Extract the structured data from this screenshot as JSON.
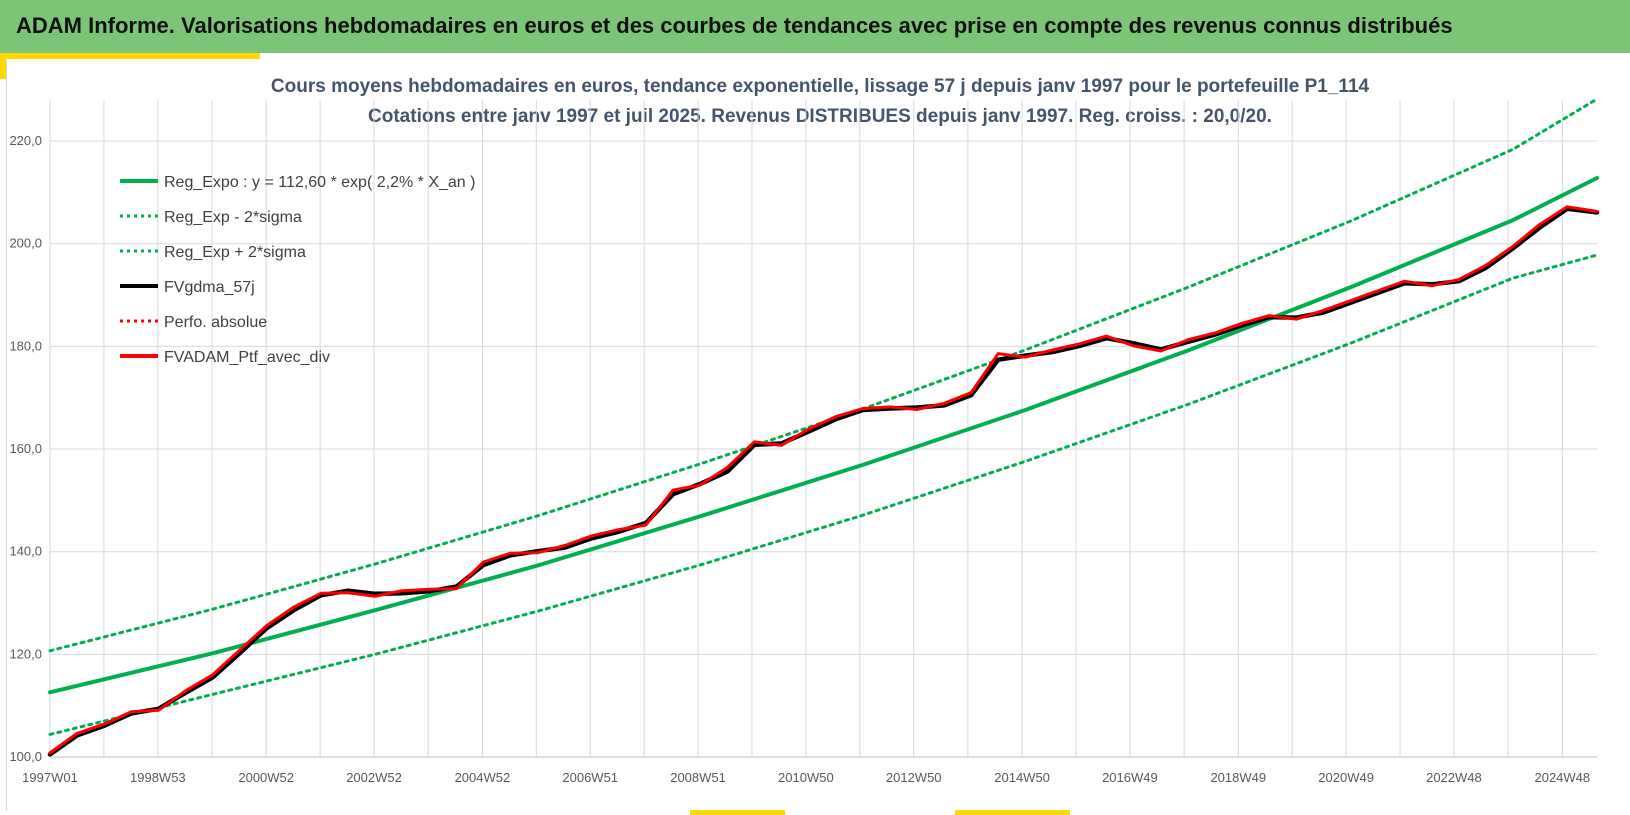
{
  "banner": {
    "title": "ADAM Informe. Valorisations hebdomadaires en euros et des courbes de tendances avec prise en compte des revenus connus distribués"
  },
  "colors": {
    "banner_bg": "#7cc576",
    "accent": "#ffd800",
    "trend_green": "#00b050",
    "fvgdma_black": "#000000",
    "portfolio_red": "#ff0000",
    "title_text": "#44546a"
  },
  "chart_data": {
    "type": "line",
    "title_line1": "Cours moyens hebdomadaires  en euros, tendance exponentielle, lissage 57 j depuis janv 1997 pour le portefeuille P1_114",
    "title_line2": "Cotations entre janv 1997 et juil 2025. Revenus DISTRIBUES depuis janv 1997. Reg. croiss. : 20,0/20.",
    "xlabel": "",
    "ylabel": "",
    "x_range": [
      1997.0,
      2025.55
    ],
    "ylim": [
      100,
      228
    ],
    "y_ticks": [
      100,
      120,
      140,
      160,
      180,
      200,
      220
    ],
    "y_tick_labels": [
      "100,0",
      "120,0",
      "140,0",
      "160,0",
      "180,0",
      "200,0",
      "220,0"
    ],
    "x_ticks": [
      {
        "x": 1997.0,
        "label": "1997W01"
      },
      {
        "x": 1998.99,
        "label": "1998W53"
      },
      {
        "x": 2000.99,
        "label": "2000W52"
      },
      {
        "x": 2002.98,
        "label": "2002W52"
      },
      {
        "x": 2004.98,
        "label": "2004W52"
      },
      {
        "x": 2006.97,
        "label": "2006W51"
      },
      {
        "x": 2008.96,
        "label": "2008W51"
      },
      {
        "x": 2010.95,
        "label": "2010W50"
      },
      {
        "x": 2012.94,
        "label": "2012W50"
      },
      {
        "x": 2014.94,
        "label": "2014W50"
      },
      {
        "x": 2016.93,
        "label": "2016W49"
      },
      {
        "x": 2018.93,
        "label": "2018W49"
      },
      {
        "x": 2020.92,
        "label": "2020W49"
      },
      {
        "x": 2022.91,
        "label": "2022W48"
      },
      {
        "x": 2024.91,
        "label": "2024W48"
      }
    ],
    "grid": {
      "horizontal": true,
      "vertical": true
    },
    "legend_position": "top-left",
    "legend": [
      {
        "label": "Reg_Expo : y = 112,60 * exp( 2,2% *  X_an )",
        "color": "#00b050",
        "style": "solid"
      },
      {
        "label": "Reg_Exp - 2*sigma",
        "color": "#00b050",
        "style": "dotted"
      },
      {
        "label": "Reg_Exp + 2*sigma",
        "color": "#00b050",
        "style": "dotted"
      },
      {
        "label": "FVgdma_57j",
        "color": "#000000",
        "style": "solid"
      },
      {
        "label": "Perfo. absolue",
        "color": "#ff0000",
        "style": "dotted"
      },
      {
        "label": "FVADAM_Ptf_avec_div",
        "color": "#ff0000",
        "style": "solid"
      }
    ],
    "series": [
      {
        "name": "Reg_Expo : y = 112,60 * exp( 2,2% *  X_an )",
        "x": [
          1997.0,
          2000.0,
          2003.0,
          2006.0,
          2009.0,
          2012.0,
          2015.0,
          2018.0,
          2021.0,
          2024.0,
          2025.55
        ],
        "values": [
          112.6,
          120.2,
          128.6,
          137.3,
          146.9,
          156.9,
          167.6,
          179.2,
          191.5,
          204.6,
          212.8
        ]
      },
      {
        "name": "Reg_Exp - 2*sigma",
        "x": [
          1997.0,
          2000.0,
          2003.0,
          2006.0,
          2009.0,
          2012.0,
          2015.0,
          2018.0,
          2021.0,
          2024.0,
          2025.55
        ],
        "values": [
          104.4,
          112.2,
          120.0,
          128.4,
          137.4,
          147.1,
          157.6,
          168.7,
          180.6,
          193.3,
          197.8
        ]
      },
      {
        "name": "Reg_Exp + 2*sigma",
        "x": [
          1997.0,
          2000.0,
          2003.0,
          2006.0,
          2009.0,
          2012.0,
          2015.0,
          2018.0,
          2021.0,
          2024.0,
          2025.55
        ],
        "values": [
          120.7,
          128.8,
          137.6,
          147.0,
          157.1,
          167.8,
          179.3,
          191.5,
          204.4,
          218.4,
          228.2
        ]
      },
      {
        "name": "FVgdma_57j",
        "x": [
          1997.0,
          1997.5,
          1998.0,
          1998.5,
          1999.0,
          1999.5,
          2000.0,
          2000.5,
          2001.0,
          2001.5,
          2002.0,
          2002.5,
          2003.0,
          2003.5,
          2004.0,
          2004.5,
          2005.0,
          2005.5,
          2006.0,
          2006.5,
          2007.0,
          2007.5,
          2008.0,
          2008.5,
          2009.0,
          2009.5,
          2010.0,
          2010.5,
          2011.0,
          2011.5,
          2012.0,
          2012.5,
          2013.0,
          2013.5,
          2014.0,
          2014.5,
          2015.0,
          2015.5,
          2016.0,
          2016.5,
          2017.0,
          2017.5,
          2018.0,
          2018.5,
          2019.0,
          2019.5,
          2020.0,
          2020.5,
          2021.0,
          2021.5,
          2022.0,
          2022.5,
          2023.0,
          2023.5,
          2024.0,
          2024.5,
          2025.0,
          2025.55
        ],
        "values": [
          100.5,
          104.2,
          106.1,
          108.5,
          109.4,
          112.5,
          115.5,
          120.2,
          125.1,
          128.6,
          131.5,
          132.4,
          131.8,
          131.9,
          132.3,
          133.2,
          137.4,
          139.3,
          140.1,
          140.8,
          142.6,
          143.9,
          145.6,
          151.2,
          153.2,
          155.6,
          160.8,
          161.1,
          163.4,
          165.8,
          167.6,
          167.9,
          168.1,
          168.5,
          170.5,
          177.4,
          178.2,
          178.9,
          180.1,
          181.6,
          180.6,
          179.4,
          180.9,
          182.3,
          184.1,
          185.7,
          185.6,
          186.6,
          188.5,
          190.4,
          192.3,
          192.1,
          192.7,
          195.3,
          199.1,
          203.2,
          206.8,
          206.1
        ]
      },
      {
        "name": "FVADAM_Ptf_avec_div",
        "x": [
          1997.0,
          1997.5,
          1998.0,
          1998.5,
          1999.0,
          1999.5,
          2000.0,
          2000.5,
          2001.0,
          2001.5,
          2002.0,
          2002.5,
          2003.0,
          2003.5,
          2004.0,
          2004.5,
          2005.0,
          2005.5,
          2006.0,
          2006.5,
          2007.0,
          2007.5,
          2008.0,
          2008.5,
          2009.0,
          2009.5,
          2010.0,
          2010.5,
          2011.0,
          2011.5,
          2012.0,
          2012.5,
          2013.0,
          2013.5,
          2014.0,
          2014.5,
          2015.0,
          2015.5,
          2016.0,
          2016.5,
          2017.0,
          2017.5,
          2018.0,
          2018.5,
          2019.0,
          2019.5,
          2020.0,
          2020.5,
          2021.0,
          2021.5,
          2022.0,
          2022.5,
          2023.0,
          2023.5,
          2024.0,
          2024.5,
          2025.0,
          2025.55
        ],
        "values": [
          100.8,
          104.6,
          106.4,
          108.8,
          109.1,
          112.9,
          116.0,
          120.8,
          125.6,
          129.2,
          131.9,
          132.0,
          131.3,
          132.4,
          132.7,
          132.8,
          138.0,
          139.7,
          139.8,
          141.2,
          143.1,
          144.3,
          145.2,
          152.0,
          153.0,
          156.4,
          161.4,
          160.7,
          163.9,
          166.3,
          167.9,
          168.2,
          167.7,
          168.9,
          171.0,
          178.6,
          177.9,
          179.3,
          180.5,
          182.0,
          180.1,
          179.1,
          181.3,
          182.6,
          184.5,
          186.0,
          185.3,
          187.0,
          188.9,
          190.8,
          192.7,
          191.8,
          193.0,
          195.8,
          199.5,
          203.8,
          207.2,
          206.3
        ]
      }
    ]
  }
}
